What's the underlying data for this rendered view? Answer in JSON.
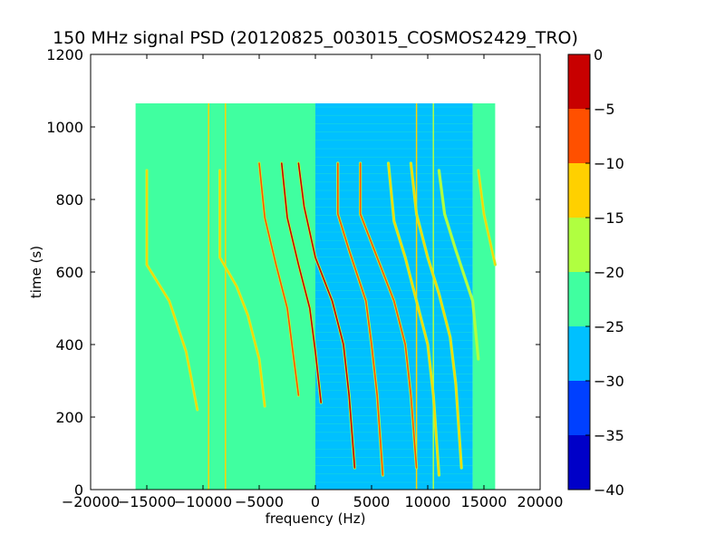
{
  "chart_data": {
    "type": "heatmap",
    "title": "150 MHz signal PSD (20120825_003015_COSMOS2429_TRO)",
    "xlabel": "frequency (Hz)",
    "ylabel": "time (s)",
    "xlim": [
      -20000,
      20000
    ],
    "ylim": [
      0,
      1200
    ],
    "x_ticks": [
      -20000,
      -15000,
      -10000,
      -5000,
      0,
      5000,
      10000,
      15000,
      20000
    ],
    "x_tick_labels": [
      "−20000",
      "−15000",
      "−10000",
      "−5000",
      "0",
      "5000",
      "10000",
      "15000",
      "20000"
    ],
    "y_ticks": [
      0,
      200,
      400,
      600,
      800,
      1000,
      1200
    ],
    "y_tick_labels": [
      "0",
      "200",
      "400",
      "600",
      "800",
      "1000",
      "1200"
    ],
    "data_extent": {
      "frequency": [
        -16000,
        16000
      ],
      "time": [
        0,
        1065
      ]
    },
    "colorbar": {
      "levels": [
        -40,
        -35,
        -30,
        -25,
        -20,
        -15,
        -10,
        -5,
        0
      ],
      "tick_labels": [
        "−40",
        "−35",
        "−30",
        "−25",
        "−20",
        "−15",
        "−10",
        "−5",
        "0"
      ],
      "colors": [
        "#0000c8",
        "#0040ff",
        "#00c0ff",
        "#40ffa0",
        "#b0ff40",
        "#ffd000",
        "#ff5000",
        "#c80000"
      ]
    },
    "background_levels": [
      {
        "frequency_range": [
          -16000,
          0
        ],
        "level_range": [
          -25,
          -20
        ]
      },
      {
        "frequency_range": [
          0,
          14000
        ],
        "level_range": [
          -30,
          -25
        ]
      },
      {
        "frequency_range": [
          14000,
          16000
        ],
        "level_range": [
          -25,
          -20
        ]
      }
    ],
    "traces": [
      {
        "points": [
          [
            -15000,
            880
          ],
          [
            -15000,
            620
          ],
          [
            -13000,
            520
          ],
          [
            -11500,
            380
          ],
          [
            -10500,
            220
          ]
        ],
        "peak_level": [
          -15,
          -10
        ]
      },
      {
        "points": [
          [
            -8500,
            880
          ],
          [
            -8500,
            640
          ],
          [
            -7000,
            560
          ],
          [
            -6000,
            480
          ],
          [
            -5000,
            360
          ],
          [
            -4500,
            230
          ]
        ],
        "peak_level": [
          -15,
          -10
        ]
      },
      {
        "points": [
          [
            -5000,
            900
          ],
          [
            -4500,
            750
          ],
          [
            -3500,
            620
          ],
          [
            -2500,
            500
          ],
          [
            -2000,
            380
          ],
          [
            -1500,
            260
          ]
        ],
        "peak_level": [
          -10,
          -5
        ]
      },
      {
        "points": [
          [
            -3000,
            900
          ],
          [
            -2500,
            750
          ],
          [
            -1500,
            620
          ],
          [
            -500,
            500
          ],
          [
            0,
            380
          ],
          [
            500,
            240
          ]
        ],
        "peak_level": [
          -5,
          0
        ]
      },
      {
        "points": [
          [
            -1500,
            900
          ],
          [
            -1000,
            780
          ],
          [
            0,
            640
          ],
          [
            1500,
            520
          ],
          [
            2500,
            400
          ],
          [
            3000,
            260
          ],
          [
            3500,
            60
          ]
        ],
        "peak_level": [
          -5,
          0
        ]
      },
      {
        "points": [
          [
            2000,
            900
          ],
          [
            2000,
            760
          ],
          [
            3000,
            660
          ],
          [
            4500,
            520
          ],
          [
            5000,
            400
          ],
          [
            5500,
            260
          ],
          [
            6000,
            40
          ]
        ],
        "peak_level": [
          -10,
          -5
        ]
      },
      {
        "points": [
          [
            4000,
            900
          ],
          [
            4000,
            760
          ],
          [
            5500,
            640
          ],
          [
            7000,
            520
          ],
          [
            8000,
            400
          ],
          [
            8500,
            260
          ],
          [
            9000,
            60
          ]
        ],
        "peak_level": [
          -10,
          -5
        ]
      },
      {
        "points": [
          [
            6500,
            900
          ],
          [
            7000,
            740
          ],
          [
            8000,
            640
          ],
          [
            9000,
            520
          ],
          [
            10000,
            400
          ],
          [
            10500,
            260
          ],
          [
            11000,
            40
          ]
        ],
        "peak_level": [
          -15,
          -10
        ]
      },
      {
        "points": [
          [
            8500,
            900
          ],
          [
            9000,
            760
          ],
          [
            10000,
            640
          ],
          [
            11000,
            540
          ],
          [
            12000,
            420
          ],
          [
            12500,
            290
          ],
          [
            13000,
            60
          ]
        ],
        "peak_level": [
          -15,
          -10
        ]
      },
      {
        "points": [
          [
            11000,
            880
          ],
          [
            11500,
            760
          ],
          [
            12500,
            660
          ],
          [
            14000,
            520
          ],
          [
            14500,
            360
          ]
        ],
        "peak_level": [
          -20,
          -15
        ]
      },
      {
        "points": [
          [
            14500,
            880
          ],
          [
            15000,
            760
          ],
          [
            16000,
            620
          ]
        ],
        "peak_level": [
          -15,
          -10
        ]
      }
    ],
    "vertical_lines": [
      {
        "frequency": -9500,
        "peak_level": [
          -15,
          -10
        ]
      },
      {
        "frequency": -8000,
        "peak_level": [
          -15,
          -10
        ]
      },
      {
        "frequency": 9000,
        "peak_level": [
          -15,
          -10
        ]
      },
      {
        "frequency": 10500,
        "peak_level": [
          -20,
          -15
        ]
      }
    ],
    "grid": false,
    "legend": "none"
  }
}
